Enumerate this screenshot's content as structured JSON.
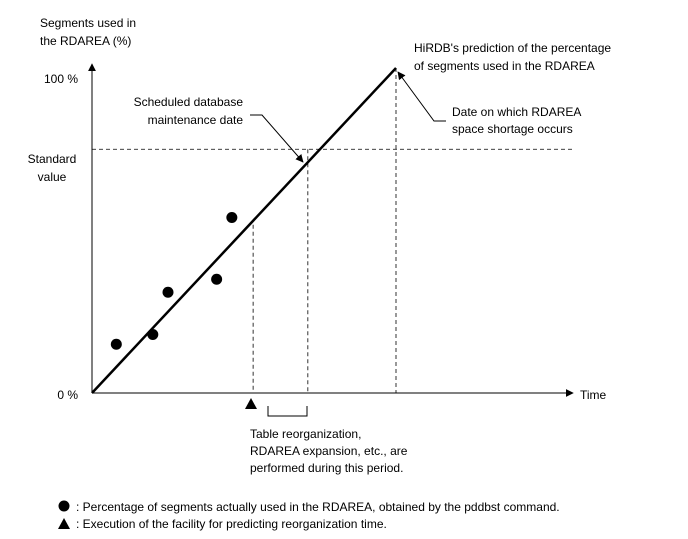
{
  "chart_data": {
    "type": "line",
    "ylabel": [
      "Segments used in",
      "the RDAREA (%)"
    ],
    "xlabel": "Time",
    "y_ticks": {
      "top": "100 %",
      "bottom": "0 %"
    },
    "standard_label": [
      "Standard",
      "value"
    ],
    "prediction_label": [
      "HiRDB's prediction of the percentage",
      "of segments used in the RDAREA"
    ],
    "scheduled_label": [
      "Scheduled database",
      "maintenance date"
    ],
    "shortage_label": [
      "Date on which RDAREA",
      "space shortage occurs"
    ],
    "period_label": [
      "Table reorganization,",
      "RDAREA expansion, etc., are",
      "performed during this period."
    ],
    "prediction_line": {
      "x": [
        0,
        100
      ],
      "y": [
        0,
        100
      ]
    },
    "standard_value": 75,
    "measured_points": [
      {
        "x": 8,
        "y": 15
      },
      {
        "x": 20,
        "y": 18
      },
      {
        "x": 25,
        "y": 31
      },
      {
        "x": 41,
        "y": 35
      },
      {
        "x": 46,
        "y": 54
      }
    ],
    "markers": {
      "reorg_time_x": 53,
      "scheduled_x": 71,
      "shortage_x": 100
    }
  },
  "legend": {
    "circle_prefix": ": Percentage of segments actually used in the RDAREA, obtained by the ",
    "circle_command": "pddbst",
    "circle_suffix": " command.",
    "triangle_text": ": Execution of the facility for predicting reorganization time."
  }
}
